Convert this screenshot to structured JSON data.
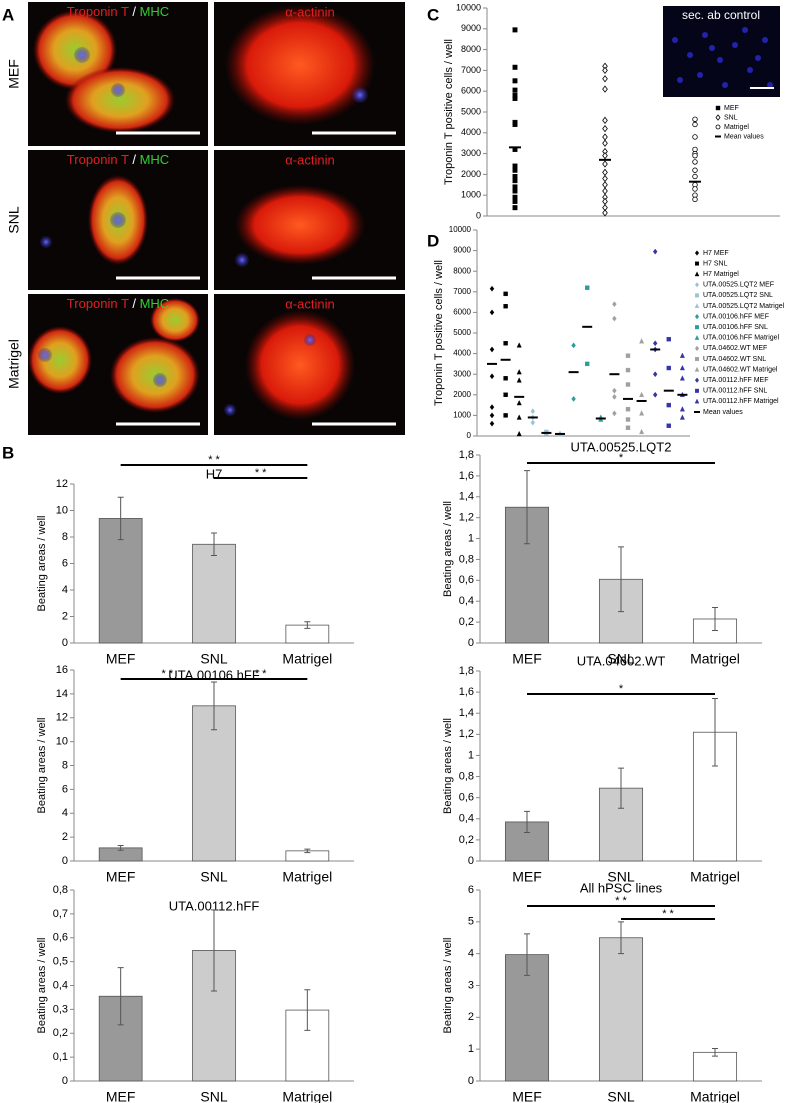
{
  "panel_labels": [
    "A",
    "B",
    "C",
    "D"
  ],
  "micrographs": {
    "rows": [
      "MEF",
      "SNL",
      "Matrigel"
    ],
    "troponin": "Troponin T",
    "separator": "/",
    "mhc": "MHC",
    "actinin": "α-actinin",
    "control": "sec. ab control"
  },
  "chart_data": [
    {
      "type": "strip",
      "ylabel": "Troponin T positive cells / well",
      "ylim": [
        0,
        10000
      ],
      "yticks": [
        0,
        1000,
        2000,
        3000,
        4000,
        5000,
        6000,
        7000,
        8000,
        9000,
        10000
      ],
      "mean_label": "Mean values",
      "groups": [
        {
          "name": "MEF",
          "marker": "square",
          "color": "#000000",
          "values": [
            8950,
            7150,
            6500,
            6050,
            5800,
            5650,
            4500,
            4400,
            3200,
            2400,
            2200,
            1900,
            1700,
            1400,
            1200,
            900,
            700,
            400
          ],
          "mean": 3300
        },
        {
          "name": "SNL",
          "marker": "diamond-open",
          "color": "#000000",
          "values": [
            7200,
            7000,
            6600,
            6100,
            4600,
            4200,
            3800,
            3500,
            3100,
            2900,
            2500,
            2100,
            1800,
            1500,
            1200,
            900,
            700,
            400,
            150
          ],
          "mean": 2700
        },
        {
          "name": "Matrigel",
          "marker": "circle-open",
          "color": "#000000",
          "values": [
            4650,
            4400,
            3800,
            3200,
            3000,
            2900,
            2600,
            2200,
            1900,
            1500,
            1300,
            1000,
            800
          ],
          "mean": 1650
        }
      ]
    },
    {
      "type": "strip",
      "ylabel": "Troponin T positive cells / well",
      "ylim": [
        0,
        10000
      ],
      "yticks": [
        0,
        1000,
        2000,
        3000,
        4000,
        5000,
        6000,
        7000,
        8000,
        9000,
        10000
      ],
      "mean_label": "Mean values",
      "groups": [
        {
          "name": "H7 MEF",
          "marker": "diamond",
          "color": "#000000",
          "values": [
            7150,
            6000,
            4200,
            2900,
            1400,
            1000,
            600
          ],
          "mean": 3500
        },
        {
          "name": "H7 SNL",
          "marker": "square",
          "color": "#000000",
          "values": [
            6900,
            6300,
            4500,
            2800,
            2000,
            1000
          ],
          "mean": 3700
        },
        {
          "name": "H7 Matrigel",
          "marker": "triangle",
          "color": "#000000",
          "values": [
            4400,
            3100,
            2700,
            1600,
            900,
            100
          ],
          "mean": 1900
        },
        {
          "name": "UTA.00525.LQT2 MEF",
          "marker": "diamond",
          "color": "#9cc3d5",
          "values": [
            1200,
            900,
            650
          ],
          "mean": 900
        },
        {
          "name": "UTA.00525.LQT2 SNL",
          "marker": "square",
          "color": "#9cc3d5",
          "values": [
            200,
            120
          ],
          "mean": 150
        },
        {
          "name": "UTA.00525.LQT2 Matrigel",
          "marker": "triangle",
          "color": "#9cc3d5",
          "values": [
            120,
            80
          ],
          "mean": 100
        },
        {
          "name": "UTA.00106.hFF MEF",
          "marker": "diamond",
          "color": "#2a9d9a",
          "values": [
            4400,
            1800
          ],
          "mean": 3100
        },
        {
          "name": "UTA.00106.hFF SNL",
          "marker": "square",
          "color": "#2a9d9a",
          "values": [
            7200,
            3500
          ],
          "mean": 5300
        },
        {
          "name": "UTA.00106.hFF Matrigel",
          "marker": "triangle",
          "color": "#2a9d9a",
          "values": [
            900,
            800
          ],
          "mean": 850
        },
        {
          "name": "UTA.04602.WT MEF",
          "marker": "diamond",
          "color": "#a0a0a0",
          "values": [
            6400,
            5700,
            2200,
            1900,
            1100
          ],
          "mean": 3000
        },
        {
          "name": "UTA.04602.WT SNL",
          "marker": "square",
          "color": "#a0a0a0",
          "values": [
            3900,
            3200,
            2500,
            1300,
            800,
            400
          ],
          "mean": 1800
        },
        {
          "name": "UTA.04602.WT Matrigel",
          "marker": "triangle",
          "color": "#a0a0a0",
          "values": [
            4600,
            2000,
            1100,
            200
          ],
          "mean": 1700
        },
        {
          "name": "UTA.00112.hFF MEF",
          "marker": "diamond",
          "color": "#3535a8",
          "values": [
            8950,
            4500,
            4200,
            3000,
            2000
          ],
          "mean": 4200
        },
        {
          "name": "UTA.00112.hFF SNL",
          "marker": "square",
          "color": "#3535a8",
          "values": [
            4700,
            3300,
            1500,
            500
          ],
          "mean": 2200
        },
        {
          "name": "UTA.00112.hFF Matrigel",
          "marker": "triangle",
          "color": "#3535a8",
          "values": [
            3900,
            3300,
            2800,
            2000,
            1300,
            900
          ],
          "mean": 2000
        }
      ]
    },
    {
      "type": "bar",
      "title": "H7",
      "ylabel": "Beating areas / well",
      "categories": [
        "MEF",
        "SNL",
        "Matrigel"
      ],
      "values": [
        9.4,
        7.45,
        1.35
      ],
      "errors": [
        1.6,
        0.85,
        0.25
      ],
      "colors": [
        "#999999",
        "#cccccc",
        "#ffffff"
      ],
      "ylim": [
        0,
        12
      ],
      "yticks": [
        0,
        2,
        4,
        6,
        8,
        10,
        12
      ],
      "significance": [
        {
          "span": [
            0,
            2
          ],
          "label": "* *"
        },
        {
          "span": [
            1,
            2
          ],
          "label": "* *"
        }
      ]
    },
    {
      "type": "bar",
      "title": "UTA.00525.LQT2",
      "ylabel": "Beating areas / well",
      "categories": [
        "MEF",
        "SNL",
        "Matrigel"
      ],
      "values": [
        1.3,
        0.61,
        0.23
      ],
      "errors": [
        0.35,
        0.31,
        0.11
      ],
      "colors": [
        "#999999",
        "#cccccc",
        "#ffffff"
      ],
      "ylim": [
        0,
        1.8
      ],
      "yticks": [
        0,
        {
          "value": 0.2,
          "label": "0,2"
        },
        {
          "value": 0.4,
          "label": "0,4"
        },
        {
          "value": 0.6,
          "label": "0,6"
        },
        {
          "value": 0.8,
          "label": "0,8"
        },
        1,
        {
          "value": 1.2,
          "label": "1,2"
        },
        {
          "value": 1.4,
          "label": "1,4"
        },
        {
          "value": 1.6,
          "label": "1,6"
        },
        {
          "value": 1.8,
          "label": "1,8"
        }
      ],
      "significance": [
        {
          "span": [
            0,
            2
          ],
          "label": "*"
        }
      ]
    },
    {
      "type": "bar",
      "title": "UTA.00106.hFF",
      "ylabel": "Beating areas / well",
      "categories": [
        "MEF",
        "SNL",
        "Matrigel"
      ],
      "values": [
        1.1,
        13.0,
        0.85
      ],
      "errors": [
        0.2,
        2.0,
        0.15
      ],
      "colors": [
        "#999999",
        "#cccccc",
        "#ffffff"
      ],
      "ylim": [
        0,
        16
      ],
      "yticks": [
        0,
        2,
        4,
        6,
        8,
        10,
        12,
        14,
        16
      ],
      "significance": [
        {
          "span": [
            0,
            1
          ],
          "label": "* *"
        },
        {
          "span": [
            1,
            2
          ],
          "label": "* *"
        }
      ]
    },
    {
      "type": "bar",
      "title": "UTA.04602.WT",
      "ylabel": "Beating areas / well",
      "categories": [
        "MEF",
        "SNL",
        "Matrigel"
      ],
      "values": [
        0.37,
        0.69,
        1.22
      ],
      "errors": [
        0.1,
        0.19,
        0.32
      ],
      "colors": [
        "#999999",
        "#cccccc",
        "#ffffff"
      ],
      "ylim": [
        0,
        1.8
      ],
      "yticks": [
        0,
        {
          "value": 0.2,
          "label": "0,2"
        },
        {
          "value": 0.4,
          "label": "0,4"
        },
        {
          "value": 0.6,
          "label": "0,6"
        },
        {
          "value": 0.8,
          "label": "0,8"
        },
        1,
        {
          "value": 1.2,
          "label": "1,2"
        },
        {
          "value": 1.4,
          "label": "1,4"
        },
        {
          "value": 1.6,
          "label": "1,6"
        },
        {
          "value": 1.8,
          "label": "1,8"
        }
      ],
      "significance": [
        {
          "span": [
            0,
            2
          ],
          "label": "*"
        }
      ]
    },
    {
      "type": "bar",
      "title": "UTA.00112.hFF",
      "ylabel": "Beating areas / well",
      "categories": [
        "MEF",
        "SNL",
        "Matrigel"
      ],
      "values": [
        0.355,
        0.547,
        0.297
      ],
      "errors": [
        0.12,
        0.17,
        0.085
      ],
      "colors": [
        "#999999",
        "#cccccc",
        "#ffffff"
      ],
      "ylim": [
        0,
        0.8
      ],
      "yticks": [
        0,
        {
          "value": 0.1,
          "label": "0,1"
        },
        {
          "value": 0.2,
          "label": "0,2"
        },
        {
          "value": 0.3,
          "label": "0,3"
        },
        {
          "value": 0.4,
          "label": "0,4"
        },
        {
          "value": 0.5,
          "label": "0,5"
        },
        {
          "value": 0.6,
          "label": "0,6"
        },
        {
          "value": 0.7,
          "label": "0,7"
        },
        {
          "value": 0.8,
          "label": "0,8"
        }
      ],
      "significance": []
    },
    {
      "type": "bar",
      "title": "All hPSC lines",
      "ylabel": "Beating areas / well",
      "categories": [
        "MEF",
        "SNL",
        "Matrigel"
      ],
      "values": [
        3.97,
        4.5,
        0.9
      ],
      "errors": [
        0.65,
        0.5,
        0.12
      ],
      "colors": [
        "#999999",
        "#cccccc",
        "#ffffff"
      ],
      "ylim": [
        0,
        6
      ],
      "yticks": [
        0,
        1,
        2,
        3,
        4,
        5,
        6
      ],
      "significance": [
        {
          "span": [
            0,
            2
          ],
          "label": "* *"
        },
        {
          "span": [
            1,
            2
          ],
          "label": "* *"
        }
      ]
    }
  ]
}
